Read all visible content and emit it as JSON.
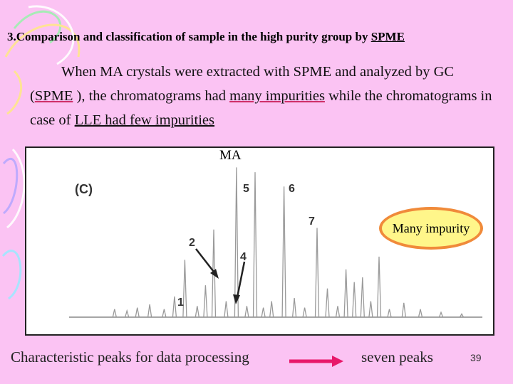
{
  "slide": {
    "title_main": "3.Comparison and classification of sample in the high purity group by ",
    "title_ul": "SPME",
    "para_1": "When MA crystals were extracted with SPME and analyzed by GC (",
    "para_2": "SPME",
    "para_3": " ), the chromatograms had ",
    "para_4": "many impurities",
    "para_5": " while the chromatograms in case of  ",
    "para_6": "LLE had few impurities",
    "ma_label": "MA",
    "impurity_label": "Many impurity",
    "footer_left": "Characteristic peaks for data processing",
    "footer_right": "seven  peaks",
    "page_number": "39",
    "colors": {
      "background": "#fbc3f3",
      "accent_ul": "#d0306a",
      "arrow": "#e8186a",
      "ellipse_border": "#f08a3a",
      "ellipse_fill": "#fff68a"
    }
  },
  "chart_data": {
    "type": "line",
    "title": "(C)",
    "xlabel": "",
    "ylabel": "",
    "peak_labels": [
      "1",
      "2",
      "4",
      "5",
      "6",
      "7"
    ],
    "peaks": [
      {
        "x": 0.11,
        "h": 0.05
      },
      {
        "x": 0.14,
        "h": 0.04
      },
      {
        "x": 0.165,
        "h": 0.06
      },
      {
        "x": 0.195,
        "h": 0.08
      },
      {
        "x": 0.23,
        "h": 0.05
      },
      {
        "x": 0.255,
        "h": 0.13
      },
      {
        "x": 0.28,
        "h": 0.36
      },
      {
        "x": 0.31,
        "h": 0.07
      },
      {
        "x": 0.33,
        "h": 0.2
      },
      {
        "x": 0.35,
        "h": 0.55
      },
      {
        "x": 0.38,
        "h": 0.1
      },
      {
        "x": 0.405,
        "h": 0.94
      },
      {
        "x": 0.43,
        "h": 0.07
      },
      {
        "x": 0.45,
        "h": 0.91
      },
      {
        "x": 0.47,
        "h": 0.06
      },
      {
        "x": 0.49,
        "h": 0.1
      },
      {
        "x": 0.52,
        "h": 0.82
      },
      {
        "x": 0.545,
        "h": 0.12
      },
      {
        "x": 0.57,
        "h": 0.06
      },
      {
        "x": 0.6,
        "h": 0.56
      },
      {
        "x": 0.625,
        "h": 0.18
      },
      {
        "x": 0.65,
        "h": 0.07
      },
      {
        "x": 0.67,
        "h": 0.3
      },
      {
        "x": 0.69,
        "h": 0.22
      },
      {
        "x": 0.71,
        "h": 0.25
      },
      {
        "x": 0.73,
        "h": 0.1
      },
      {
        "x": 0.75,
        "h": 0.38
      },
      {
        "x": 0.775,
        "h": 0.05
      },
      {
        "x": 0.81,
        "h": 0.09
      },
      {
        "x": 0.85,
        "h": 0.05
      },
      {
        "x": 0.9,
        "h": 0.03
      },
      {
        "x": 0.95,
        "h": 0.02
      }
    ]
  }
}
